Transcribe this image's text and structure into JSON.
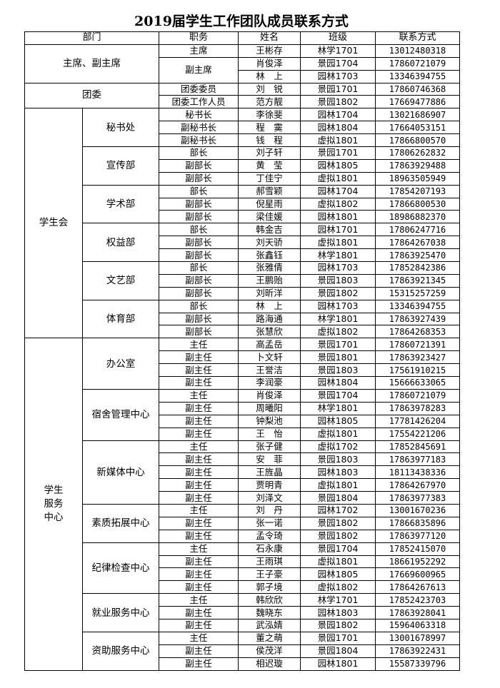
{
  "title": "2019届学生工作团队成员联系方式",
  "headers": {
    "department": "部门",
    "role": "职务",
    "name": "姓名",
    "class": "班级",
    "phone": "联系方式"
  },
  "sections": [
    {
      "name": "主席、副主席",
      "groups": [
        {
          "name": "",
          "members": [
            {
              "role": "主席",
              "name": "王彬存",
              "class": "林学1701",
              "phone": "13012480318"
            },
            {
              "role": "副主席",
              "name": "肖俊泽",
              "class": "景园1704",
              "phone": "17860721079"
            },
            {
              "role": "副主席",
              "name": "林　上",
              "class": "园林1703",
              "phone": "13346394755"
            }
          ]
        }
      ]
    },
    {
      "name": "团委",
      "groups": [
        {
          "name": "",
          "members": [
            {
              "role": "团委委员",
              "name": "刘　锐",
              "class": "景园1701",
              "phone": "17860746368"
            },
            {
              "role": "团委工作人员",
              "name": "范方靓",
              "class": "景园1802",
              "phone": "17669477886"
            }
          ]
        }
      ]
    },
    {
      "name": "学生会",
      "groups": [
        {
          "name": "秘书处",
          "members": [
            {
              "role": "秘书长",
              "name": "李徐斐",
              "class": "园林1704",
              "phone": "13021686907"
            },
            {
              "role": "副秘书长",
              "name": "程　霙",
              "class": "园林1804",
              "phone": "17664053151"
            },
            {
              "role": "副秘书长",
              "name": "钱　程",
              "class": "虚拟1801",
              "phone": "17866800570"
            }
          ]
        },
        {
          "name": "宣传部",
          "members": [
            {
              "role": "部长",
              "name": "刘子轩",
              "class": "景园1701",
              "phone": "17806262832"
            },
            {
              "role": "副部长",
              "name": "黄　莹",
              "class": "园林1805",
              "phone": "17863929488"
            },
            {
              "role": "副部长",
              "name": "丁佳宁",
              "class": "虚拟1801",
              "phone": "18963505949"
            }
          ]
        },
        {
          "name": "学术部",
          "members": [
            {
              "role": "部长",
              "name": "郝雪颖",
              "class": "园林1704",
              "phone": "17854207193"
            },
            {
              "role": "副部长",
              "name": "倪星雨",
              "class": "虚拟1802",
              "phone": "17866800530"
            },
            {
              "role": "副部长",
              "name": "梁佳媛",
              "class": "园林1801",
              "phone": "18986882370"
            }
          ]
        },
        {
          "name": "权益部",
          "members": [
            {
              "role": "部长",
              "name": "韩金吉",
              "class": "园林1701",
              "phone": "17806247716"
            },
            {
              "role": "副部长",
              "name": "刘天骄",
              "class": "虚拟1801",
              "phone": "17864267038"
            },
            {
              "role": "副部长",
              "name": "张鑫钰",
              "class": "林学1801",
              "phone": "17863925470"
            }
          ]
        },
        {
          "name": "文艺部",
          "members": [
            {
              "role": "部长",
              "name": "张雅倩",
              "class": "园林1703",
              "phone": "17852842386"
            },
            {
              "role": "副部长",
              "name": "王鹏贻",
              "class": "景园1803",
              "phone": "17863921345"
            },
            {
              "role": "副部长",
              "name": "刘昕洋",
              "class": "景园1802",
              "phone": "15315257259"
            }
          ]
        },
        {
          "name": "体育部",
          "members": [
            {
              "role": "部长",
              "name": "林　上",
              "class": "园林1703",
              "phone": "13346394755"
            },
            {
              "role": "副部长",
              "name": "路海通",
              "class": "林学1801",
              "phone": "17863927439"
            },
            {
              "role": "副部长",
              "name": "张慧欣",
              "class": "虚拟1802",
              "phone": "17864268353"
            }
          ]
        }
      ]
    },
    {
      "name": "学生\n服务\n中心",
      "groups": [
        {
          "name": "办公室",
          "members": [
            {
              "role": "主任",
              "name": "高孟岳",
              "class": "景园1701",
              "phone": "17860721391"
            },
            {
              "role": "副主任",
              "name": "卜文轩",
              "class": "景园1801",
              "phone": "17863923427"
            },
            {
              "role": "副主任",
              "name": "王誉洁",
              "class": "景园1803",
              "phone": "17561910215"
            },
            {
              "role": "副主任",
              "name": "李润豪",
              "class": "园林1804",
              "phone": "15666633065"
            }
          ]
        },
        {
          "name": "宿舍管理中心",
          "members": [
            {
              "role": "主任",
              "name": "肖俊泽",
              "class": "景园1704",
              "phone": "17860721079"
            },
            {
              "role": "副主任",
              "name": "周曦阳",
              "class": "林学1801",
              "phone": "17863978283"
            },
            {
              "role": "副主任",
              "name": "钟梨池",
              "class": "园林1805",
              "phone": "17781426204"
            },
            {
              "role": "副主任",
              "name": "王　怡",
              "class": "虚拟1801",
              "phone": "17554221206"
            }
          ]
        },
        {
          "name": "新媒体中心",
          "members": [
            {
              "role": "主任",
              "name": "张子健",
              "class": "虚拟1702",
              "phone": "17852845691"
            },
            {
              "role": "副主任",
              "name": "安　菲",
              "class": "景园1803",
              "phone": "17863977183"
            },
            {
              "role": "副主任",
              "name": "王旌晶",
              "class": "园林1803",
              "phone": "18113438336"
            },
            {
              "role": "副主任",
              "name": "贾明青",
              "class": "虚拟1801",
              "phone": "17864267970"
            },
            {
              "role": "副主任",
              "name": "刘泽文",
              "class": "景园1804",
              "phone": "17863977383"
            }
          ]
        },
        {
          "name": "素质拓展中心",
          "members": [
            {
              "role": "主任",
              "name": "刘　丹",
              "class": "园林1702",
              "phone": "13001670236"
            },
            {
              "role": "副主任",
              "name": "张一诺",
              "class": "景园1802",
              "phone": "17866835896"
            },
            {
              "role": "副主任",
              "name": "孟令琦",
              "class": "景园1802",
              "phone": "17863977120"
            }
          ]
        },
        {
          "name": "纪律检查中心",
          "members": [
            {
              "role": "主任",
              "name": "石永康",
              "class": "景园1704",
              "phone": "17852415070"
            },
            {
              "role": "副主任",
              "name": "王雨琪",
              "class": "虚拟1801",
              "phone": "18661952292"
            },
            {
              "role": "副主任",
              "name": "王子豪",
              "class": "园林1805",
              "phone": "17669600965"
            },
            {
              "role": "副主任",
              "name": "郭子境",
              "class": "虚拟1802",
              "phone": "17864267613"
            }
          ]
        },
        {
          "name": "就业服务中心",
          "members": [
            {
              "role": "主任",
              "name": "韩欣欣",
              "class": "林学1701",
              "phone": "17852423703"
            },
            {
              "role": "副主任",
              "name": "魏晓东",
              "class": "园林1803",
              "phone": "17863928041"
            },
            {
              "role": "副主任",
              "name": "武泓婧",
              "class": "景园1802",
              "phone": "15964063318"
            }
          ]
        },
        {
          "name": "资助服务中心",
          "members": [
            {
              "role": "主任",
              "name": "董之萌",
              "class": "景园1701",
              "phone": "13001678997"
            },
            {
              "role": "副主任",
              "name": "侯茂洋",
              "class": "景园1804",
              "phone": "17863922431"
            },
            {
              "role": "副主任",
              "name": "相迟璇",
              "class": "园林1801",
              "phone": "15587339796"
            }
          ]
        }
      ]
    }
  ]
}
